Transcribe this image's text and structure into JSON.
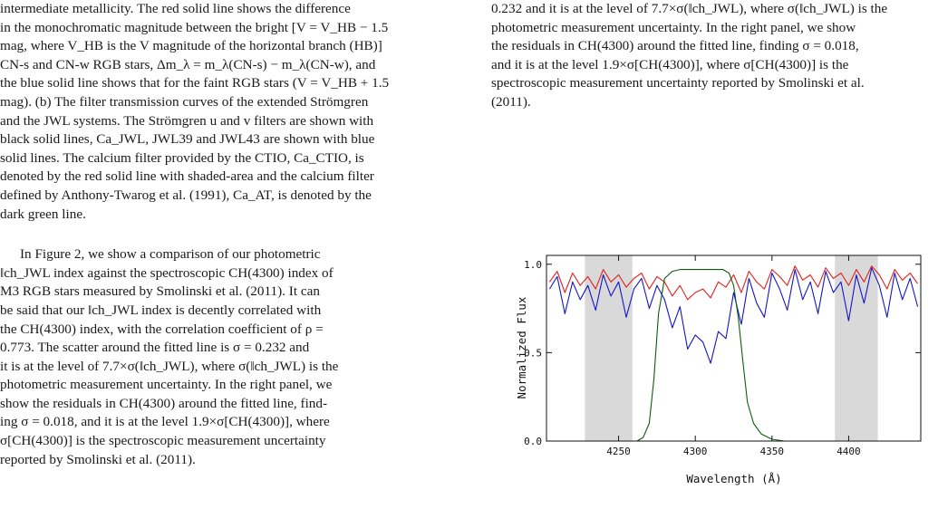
{
  "left_column": {
    "caption_lines": [
      "intermediate metallicity. The red solid line shows the difference",
      "in the monochromatic magnitude between the bright [V = V_HB − 1.5",
      "mag, where V_HB is the V magnitude of the horizontal branch (HB)]",
      "CN-s and CN-w RGB stars, Δm_λ = m_λ(CN-s) − m_λ(CN-w), and",
      "the blue solid line shows that for the faint RGB stars (V = V_HB + 1.5",
      "mag). (b) The filter transmission curves of the extended Strömgren",
      "and the JWL systems. The Strömgren u and v filters are shown with",
      "black solid lines, Ca_JWL, JWL39 and JWL43 are shown with blue",
      "solid lines. The calcium filter provided by the CTIO, Ca_CTIO, is",
      "denoted by the red solid line with shaded-area and the calcium filter",
      "defined by Anthony-Twarog et al. (1991), Ca_AT, is denoted by the",
      "dark green line."
    ],
    "body_lines": [
      "In Figure 2, we show a comparison of our photometric",
      "‖ch_JWL index against the spectroscopic CH(4300) index of",
      "M3 RGB stars measured by Smolinski et al. (2011). It can",
      "be said that our ‖ch_JWL index is decently correlated with",
      "the CH(4300) index, with the correlation coefficient of ρ =",
      "0.773. The scatter around the fitted line is σ = 0.232 and",
      "it is at the level of 7.7×σ(‖ch_JWL), where σ(‖ch_JWL) is the",
      "photometric measurement uncertainty. In the right panel, we",
      "show the residuals in CH(4300) around the fitted line, find-",
      "ing σ = 0.018, and it is at the level 1.9×σ[CH(4300)], where",
      "σ[CH(4300)] is the spectroscopic measurement uncertainty",
      "reported by Smolinski et al. (2011)."
    ]
  },
  "right_column": {
    "lines": [
      "0.232 and it is at the level of 7.7×σ(‖ch_JWL), where σ(‖ch_JWL) is the",
      "photometric measurement uncertainty. In the right panel, we show",
      "the residuals in CH(4300) around the fitted line, finding σ = 0.018,",
      "and it is at the level 1.9×σ[CH(4300)], where σ[CH(4300)] is the",
      "spectroscopic measurement uncertainty reported by Smolinski et al.",
      "(2011)."
    ]
  },
  "chart_data": {
    "type": "line",
    "xlabel": "Wavelength (Å)",
    "ylabel": "Normalized Flux",
    "xlim": [
      4203,
      4447
    ],
    "ylim": [
      0.0,
      1.05
    ],
    "x_ticks": [
      4250,
      4300,
      4350,
      4400
    ],
    "y_ticks": [
      "0.0",
      "0.5",
      "1.0"
    ],
    "shaded_bands": [
      [
        4228,
        4259
      ],
      [
        4391,
        4419
      ]
    ],
    "band_color": "#d9d9d9",
    "series": [
      {
        "color": "#e0201b",
        "x": [
          4205,
          4210,
          4215,
          4220,
          4225,
          4230,
          4235,
          4240,
          4245,
          4250,
          4255,
          4260,
          4265,
          4270,
          4275,
          4280,
          4285,
          4290,
          4295,
          4300,
          4305,
          4310,
          4315,
          4320,
          4325,
          4330,
          4335,
          4340,
          4345,
          4350,
          4355,
          4360,
          4365,
          4370,
          4375,
          4380,
          4385,
          4390,
          4395,
          4400,
          4405,
          4410,
          4415,
          4420,
          4425,
          4430,
          4435,
          4440,
          4445
        ],
        "values": [
          0.9,
          0.96,
          0.84,
          0.95,
          0.88,
          0.93,
          0.86,
          0.97,
          0.9,
          0.94,
          0.87,
          0.92,
          0.95,
          0.86,
          0.93,
          0.9,
          0.82,
          0.88,
          0.8,
          0.84,
          0.86,
          0.81,
          0.9,
          0.87,
          0.94,
          0.84,
          0.96,
          0.9,
          0.86,
          0.97,
          0.93,
          0.88,
          0.99,
          0.91,
          0.94,
          0.87,
          0.98,
          0.92,
          0.95,
          0.88,
          0.97,
          0.9,
          0.99,
          0.94,
          0.86,
          0.97,
          0.91,
          0.95,
          0.89
        ]
      },
      {
        "color": "#1515c8",
        "x": [
          4205,
          4210,
          4215,
          4220,
          4225,
          4230,
          4235,
          4240,
          4245,
          4250,
          4255,
          4260,
          4265,
          4270,
          4275,
          4280,
          4285,
          4290,
          4295,
          4300,
          4305,
          4310,
          4315,
          4320,
          4325,
          4330,
          4335,
          4340,
          4345,
          4350,
          4355,
          4360,
          4365,
          4370,
          4375,
          4380,
          4385,
          4390,
          4395,
          4400,
          4405,
          4410,
          4415,
          4420,
          4425,
          4430,
          4435,
          4440,
          4445
        ],
        "values": [
          0.86,
          0.93,
          0.72,
          0.9,
          0.8,
          0.88,
          0.74,
          0.94,
          0.82,
          0.9,
          0.7,
          0.86,
          0.92,
          0.75,
          0.88,
          0.8,
          0.64,
          0.76,
          0.52,
          0.6,
          0.56,
          0.44,
          0.62,
          0.58,
          0.84,
          0.66,
          0.92,
          0.78,
          0.7,
          0.95,
          0.86,
          0.74,
          0.97,
          0.8,
          0.9,
          0.72,
          0.96,
          0.84,
          0.9,
          0.68,
          0.94,
          0.78,
          0.98,
          0.88,
          0.7,
          0.95,
          0.8,
          0.92,
          0.76
        ]
      },
      {
        "color": "#0c5e0c",
        "x": [
          4203,
          4262,
          4266,
          4270,
          4273,
          4276,
          4280,
          4285,
          4290,
          4300,
          4310,
          4318,
          4322,
          4325,
          4328,
          4331,
          4334,
          4338,
          4343,
          4350,
          4358,
          4447
        ],
        "values": [
          0.0,
          0.0,
          0.02,
          0.1,
          0.35,
          0.72,
          0.92,
          0.96,
          0.97,
          0.97,
          0.97,
          0.97,
          0.95,
          0.88,
          0.7,
          0.45,
          0.22,
          0.1,
          0.04,
          0.01,
          0.0,
          0.0
        ]
      }
    ]
  }
}
